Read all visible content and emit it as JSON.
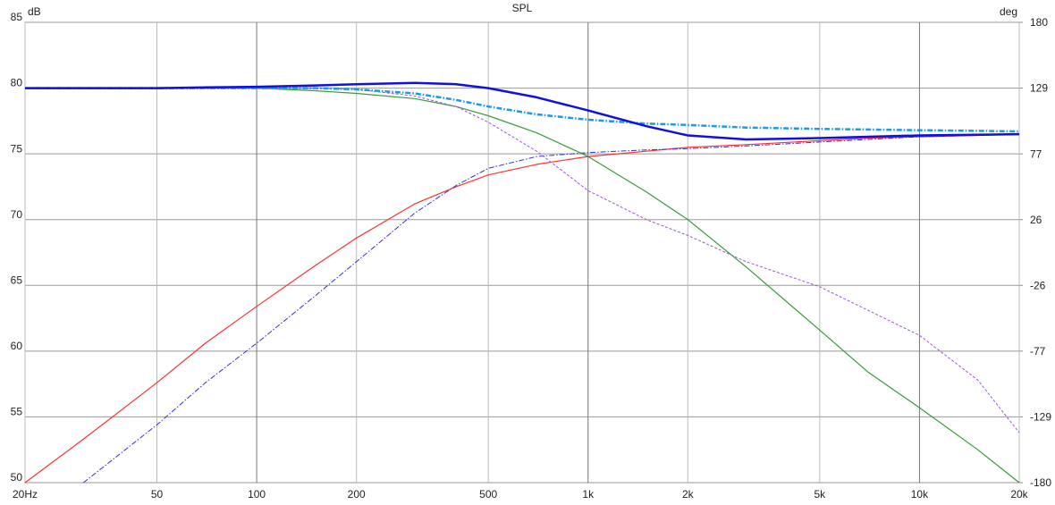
{
  "chart_data": {
    "type": "line",
    "title": "SPL",
    "y_label": "dB",
    "y2_label": "deg",
    "x": [
      20,
      30,
      50,
      70,
      100,
      150,
      200,
      300,
      400,
      500,
      700,
      1000,
      1500,
      2000,
      3000,
      5000,
      7000,
      10000,
      15000,
      20000
    ],
    "series": [
      {
        "color": "#ff3030",
        "style": "solid",
        "width": 1.2,
        "values": [
          50,
          53.3,
          57.6,
          60.6,
          63.4,
          66.5,
          68.6,
          71.2,
          72.5,
          73.4,
          74.2,
          74.8,
          75.2,
          75.5,
          75.7,
          76.0,
          76.2,
          76.3,
          76.4,
          76.5
        ]
      },
      {
        "color": "#3030e0",
        "style": "dashdot",
        "width": 1,
        "values": [
          null,
          50,
          54.4,
          57.6,
          60.6,
          64.2,
          66.8,
          70.5,
          72.6,
          73.9,
          74.8,
          75.1,
          75.3,
          75.4,
          75.6,
          75.9,
          76.1,
          76.3,
          76.4,
          76.5
        ]
      },
      {
        "color": "#3a9a3a",
        "style": "solid",
        "width": 1.2,
        "values": [
          80,
          80,
          80,
          80,
          80,
          79.8,
          79.6,
          79.2,
          78.6,
          77.9,
          76.6,
          74.8,
          72.1,
          70,
          66.4,
          61.6,
          58.4,
          55.7,
          52.5,
          50
        ]
      },
      {
        "color": "#a050e0",
        "style": "dash",
        "width": 1,
        "values": [
          80,
          80,
          80,
          80,
          80,
          80,
          79.9,
          79.4,
          78.6,
          77.4,
          75.2,
          72.2,
          70.0,
          68.8,
          66.8,
          64.9,
          63.1,
          61.2,
          57.8,
          53.8
        ]
      },
      {
        "color": "#1a9ae8",
        "style": "dashdot",
        "width": 2.5,
        "values": [
          80,
          80,
          80,
          80,
          80,
          80,
          79.9,
          79.6,
          79.1,
          78.6,
          78.0,
          77.6,
          77.3,
          77.2,
          77.0,
          76.9,
          76.85,
          76.8,
          76.75,
          76.7
        ]
      },
      {
        "color": "#1010e0",
        "style": "solid",
        "width": 2.5,
        "values": [
          80,
          80,
          80,
          80.05,
          80.1,
          80.2,
          80.3,
          80.4,
          80.3,
          80.0,
          79.3,
          78.3,
          77.1,
          76.4,
          76.1,
          76.2,
          76.3,
          76.4,
          76.45,
          76.5
        ]
      }
    ],
    "xscale": "log",
    "xlim": [
      20,
      20000
    ],
    "xticks": [
      {
        "value": 20,
        "label": "20Hz"
      },
      50,
      100,
      200,
      500,
      {
        "value": 1000,
        "label": "1k"
      },
      {
        "value": 2000,
        "label": "2k"
      },
      {
        "value": 5000,
        "label": "5k"
      },
      {
        "value": 10000,
        "label": "10k"
      },
      {
        "value": 20000,
        "label": "20k"
      }
    ],
    "ylim": [
      50,
      85
    ],
    "yticks": [
      50,
      55,
      60,
      65,
      70,
      75,
      80,
      85
    ],
    "y2lim": [
      -180,
      180
    ],
    "y2ticks": [
      -180,
      {
        "value": -128.57,
        "label": "-129"
      },
      {
        "value": -77.14,
        "label": "-77"
      },
      {
        "value": -25.71,
        "label": "-26"
      },
      {
        "value": 25.71,
        "label": "26"
      },
      {
        "value": 77.14,
        "label": "77"
      },
      {
        "value": 128.57,
        "label": "129"
      },
      180
    ],
    "grid": true
  }
}
